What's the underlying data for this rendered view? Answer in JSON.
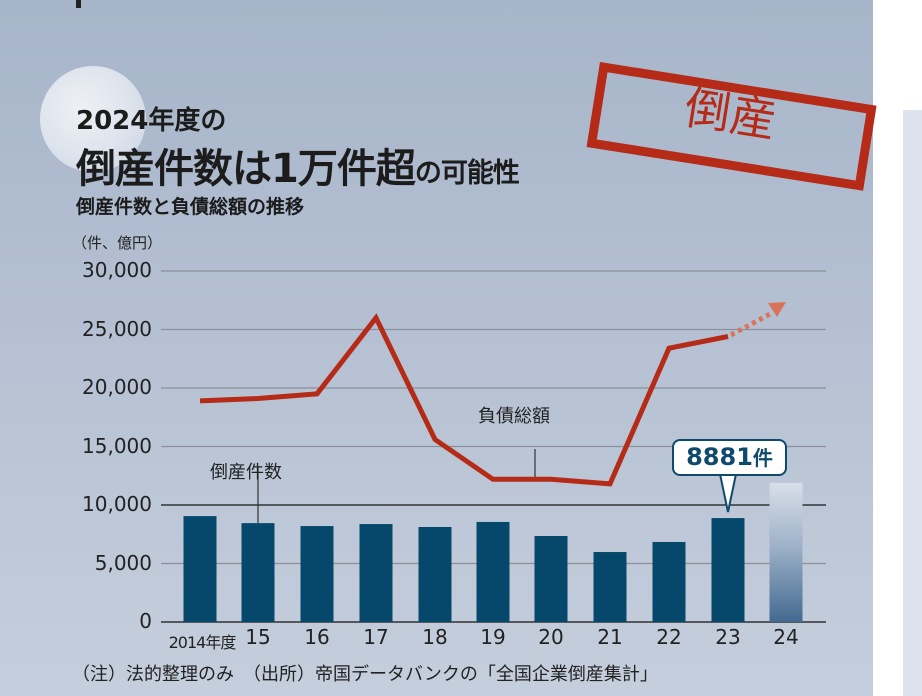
{
  "header": {
    "title_line1": "2024年度の",
    "title_line2_main": "倒産件数は1万件超",
    "title_line2_tail": "の可能性",
    "subtitle": "倒産件数と負債総額の推移",
    "stamp": "倒産"
  },
  "axis": {
    "unit": "（件、億円）",
    "yticks": [
      "30,000",
      "25,000",
      "20,000",
      "15,000",
      "10,000",
      "5,000",
      "0"
    ],
    "xticks": [
      "2014年度",
      "15",
      "16",
      "17",
      "18",
      "19",
      "20",
      "21",
      "22",
      "23",
      "24"
    ]
  },
  "labels": {
    "bars": "倒産件数",
    "line": "負債総額",
    "badge_value": "8881",
    "badge_unit": "件"
  },
  "footer": {
    "note": "（注）法的整理のみ　（出所）帝国データバンクの「全国企業倒産集計」"
  },
  "colors": {
    "bar": "#05486b",
    "line": "#b52b17",
    "forecast_arrow": "#d9735a",
    "stamp": "#b52b17"
  },
  "chart_data": {
    "type": "bar",
    "title": "2024年度の倒産件数は1万件超の可能性",
    "subtitle": "倒産件数と負債総額の推移",
    "xlabel": "",
    "ylabel": "（件、億円）",
    "ylim": [
      0,
      30000
    ],
    "yticks": [
      0,
      5000,
      10000,
      15000,
      20000,
      25000,
      30000
    ],
    "categories": [
      "2014",
      "2015",
      "2016",
      "2017",
      "2018",
      "2019",
      "2020",
      "2021",
      "2022",
      "2023",
      "2024"
    ],
    "series": [
      {
        "name": "倒産件数",
        "type": "bar",
        "unit": "件",
        "values": [
          9050,
          8450,
          8200,
          8370,
          8120,
          8550,
          7350,
          5980,
          6840,
          8881,
          11900
        ],
        "note": "2024 is a projection (gradient bar)"
      },
      {
        "name": "負債総額",
        "type": "line",
        "unit": "億円",
        "values": [
          18900,
          19100,
          19500,
          26000,
          15600,
          12200,
          12200,
          11800,
          23400,
          24400,
          null
        ],
        "note": "dotted arrow extends upward after 2023"
      }
    ],
    "annotations": [
      "8881件 (2023)"
    ],
    "source": "帝国データバンクの「全国企業倒産集計」",
    "grid": true
  }
}
